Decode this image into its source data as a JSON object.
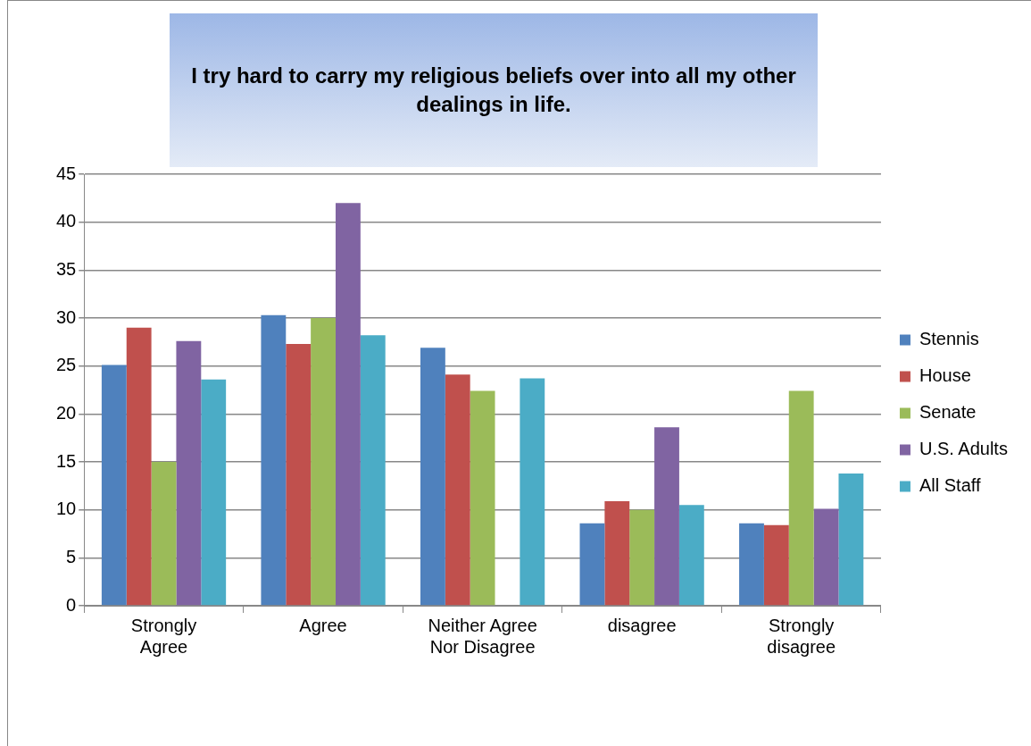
{
  "chart_data": {
    "type": "bar",
    "title": "I try hard to carry my religious beliefs over into all my other dealings in life.",
    "categories": [
      "Strongly Agree",
      "Agree",
      "Neither Agree Nor Disagree",
      "disagree",
      "Strongly disagree"
    ],
    "series": [
      {
        "name": "Stennis",
        "color": "#4f81bd",
        "values": [
          25.1,
          30.3,
          26.9,
          8.6,
          8.6
        ]
      },
      {
        "name": "House",
        "color": "#c0504d",
        "values": [
          29.0,
          27.3,
          24.1,
          10.9,
          8.4
        ]
      },
      {
        "name": "Senate",
        "color": "#9bbb59",
        "values": [
          15.0,
          30.0,
          22.4,
          10.0,
          22.4
        ]
      },
      {
        "name": "U.S. Adults",
        "color": "#8064a2",
        "values": [
          27.6,
          42.0,
          null,
          18.6,
          10.1
        ]
      },
      {
        "name": "All Staff",
        "color": "#4bacc6",
        "values": [
          23.6,
          28.2,
          23.7,
          10.5,
          13.8
        ]
      }
    ],
    "ylim": [
      0,
      45
    ],
    "yticks": [
      0,
      5,
      10,
      15,
      20,
      25,
      30,
      35,
      40,
      45
    ],
    "grid": "y",
    "legend": "right"
  }
}
